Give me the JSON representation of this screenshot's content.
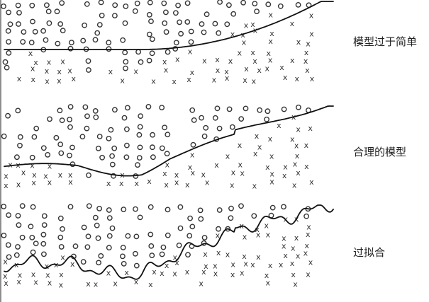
{
  "panels": [
    {
      "label": "模型过于简单",
      "boundary_style": "underfit"
    },
    {
      "label": "合理的模型",
      "boundary_style": "good-fit"
    },
    {
      "label": "过拟合",
      "boundary_style": "overfit"
    }
  ],
  "marks": {
    "class_a_symbol": "o",
    "class_b_symbol": "x"
  }
}
